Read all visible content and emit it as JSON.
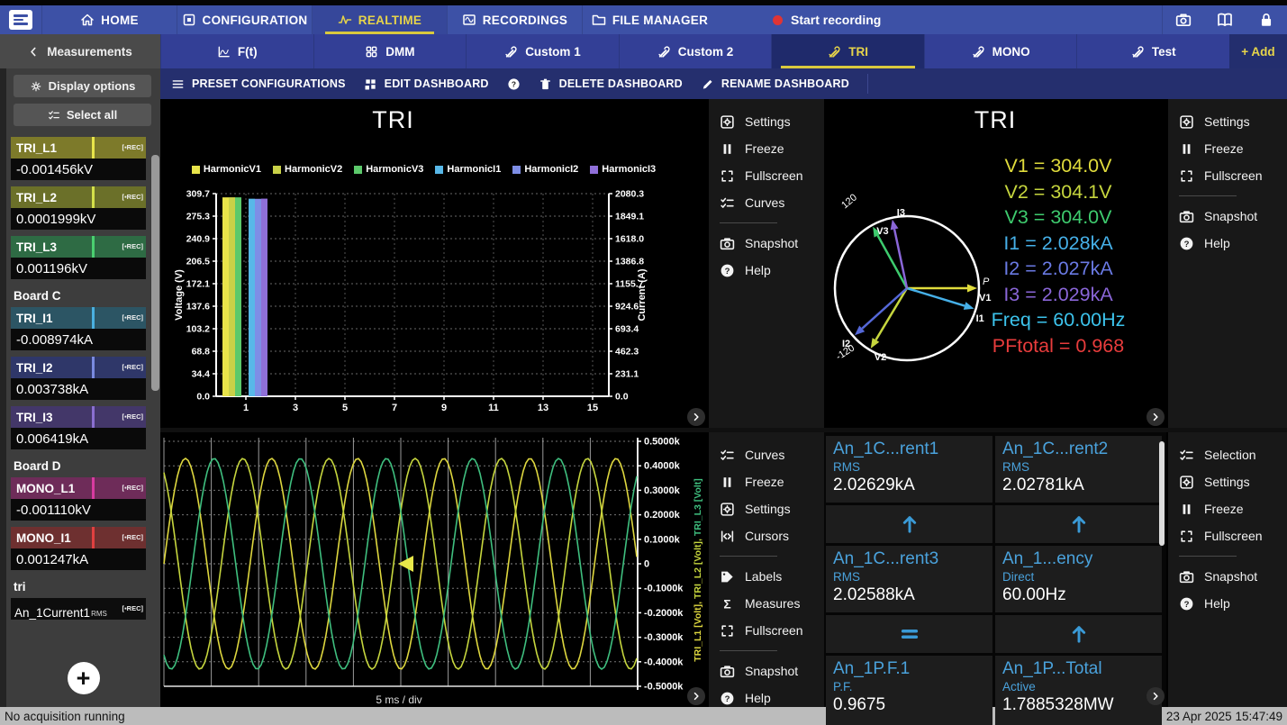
{
  "topnav": {
    "items": [
      {
        "icon": "home",
        "label": "HOME",
        "active": false
      },
      {
        "icon": "configuration",
        "label": "CONFIGURATION",
        "active": false
      },
      {
        "icon": "realtime",
        "label": "REALTIME",
        "active": true
      },
      {
        "icon": "recordings",
        "label": "RECORDINGS",
        "active": false
      },
      {
        "icon": "folder",
        "label": "FILE MANAGER",
        "active": false
      }
    ],
    "record_label": "Start recording",
    "right_icons": [
      {
        "icon": "camera",
        "name": "screenshot"
      },
      {
        "icon": "book",
        "name": "manual"
      },
      {
        "icon": "lock",
        "name": "lock"
      }
    ]
  },
  "tabs": {
    "back": "Measurements",
    "items": [
      {
        "icon": "ft",
        "label": "F(t)",
        "active": false
      },
      {
        "icon": "dmm",
        "label": "DMM",
        "active": false
      },
      {
        "icon": "tools",
        "label": "Custom 1",
        "active": false
      },
      {
        "icon": "tools",
        "label": "Custom 2",
        "active": false
      },
      {
        "icon": "tools",
        "label": "TRI",
        "active": true
      },
      {
        "icon": "tools",
        "label": "MONO",
        "active": false
      },
      {
        "icon": "tools",
        "label": "Test",
        "active": false
      }
    ],
    "add": "+ Add"
  },
  "toolbar": {
    "items": [
      {
        "icon": "hamburger",
        "label": "PRESET CONFIGURATIONS"
      },
      {
        "icon": "editgrid",
        "label": "EDIT DASHBOARD"
      },
      {
        "icon": "help",
        "label": ""
      },
      {
        "icon": "trash",
        "label": "DELETE DASHBOARD"
      },
      {
        "icon": "pencil",
        "label": "RENAME DASHBOARD"
      }
    ]
  },
  "sidebar": {
    "display_options": "Display options",
    "select_all": "Select all",
    "rec_badge": "[▪REC]",
    "entries": [
      {
        "type": "channel",
        "name": "TRI_L1",
        "value": "-0.001456kV",
        "bg": "#7d7a2a",
        "marker": "#e8e44a"
      },
      {
        "type": "channel",
        "name": "TRI_L2",
        "value": "0.0001999kV",
        "bg": "#6b7029",
        "marker": "#d4e04a"
      },
      {
        "type": "channel",
        "name": "TRI_L3",
        "value": "0.001196kV",
        "bg": "#2e6b44",
        "marker": "#4ad070"
      },
      {
        "type": "header",
        "name": "Board C"
      },
      {
        "type": "channel",
        "name": "TRI_I1",
        "value": "-0.008974kA",
        "bg": "#2c5564",
        "marker": "#4ab0e0"
      },
      {
        "type": "channel",
        "name": "TRI_I2",
        "value": "0.003738kA",
        "bg": "#2f3769",
        "marker": "#7a8ae0"
      },
      {
        "type": "channel",
        "name": "TRI_I3",
        "value": "0.006419kA",
        "bg": "#433769",
        "marker": "#8a6fd0"
      },
      {
        "type": "header",
        "name": "Board D"
      },
      {
        "type": "channel",
        "name": "MONO_L1",
        "value": "-0.001110kV",
        "bg": "#6e2c59",
        "marker": "#d83ba0"
      },
      {
        "type": "channel",
        "name": "MONO_I1",
        "value": "0.001247kA",
        "bg": "#6e3030",
        "marker": "#e04040"
      },
      {
        "type": "header",
        "name": "tri"
      },
      {
        "type": "channel_dark",
        "name": "An_1Current1",
        "sub": "RMS"
      }
    ]
  },
  "panels": {
    "harmonic": {
      "title": "TRI",
      "legend": [
        {
          "label": "HarmonicV1",
          "color": "#e8e44a"
        },
        {
          "label": "HarmonicV2",
          "color": "#c9d148",
          "note": ""
        },
        {
          "label": "HarmonicV3",
          "color": "#5cc96b"
        },
        {
          "label": "HarmonicI1",
          "color": "#58b8e8"
        },
        {
          "label": "HarmonicI2",
          "color": "#7e8ee6"
        },
        {
          "label": "HarmonicI3",
          "color": "#8f6fd8"
        }
      ],
      "menu": [
        {
          "icon": "settings",
          "label": "Settings"
        },
        {
          "icon": "freeze",
          "label": "Freeze"
        },
        {
          "icon": "fullscreen",
          "label": "Fullscreen"
        },
        {
          "icon": "curves",
          "label": "Curves"
        },
        {
          "divider": true
        },
        {
          "icon": "snapshot",
          "label": "Snapshot"
        },
        {
          "icon": "help",
          "label": "Help"
        }
      ]
    },
    "phasor": {
      "title": "TRI",
      "readouts": [
        {
          "label": "V1",
          "value": "304.0V",
          "color": "#e0dc3c"
        },
        {
          "label": "V2",
          "value": "304.1V",
          "color": "#c6d63e"
        },
        {
          "label": "V3",
          "value": "304.0V",
          "color": "#3ecb6e"
        },
        {
          "label": "I1",
          "value": "2.028kA",
          "color": "#46b0e8"
        },
        {
          "label": "I2",
          "value": "2.027kA",
          "color": "#6a7ae4"
        },
        {
          "label": "I3",
          "value": "2.029kA",
          "color": "#8a66d8"
        },
        {
          "label": "Freq",
          "value": "60.00Hz",
          "color": "#3cc3ec"
        },
        {
          "label": "PFtotal",
          "value": "0.968",
          "color": "#e83c3c"
        }
      ],
      "menu": [
        {
          "icon": "settings",
          "label": "Settings"
        },
        {
          "icon": "freeze",
          "label": "Freeze"
        },
        {
          "icon": "fullscreen",
          "label": "Fullscreen"
        },
        {
          "divider": true
        },
        {
          "icon": "snapshot",
          "label": "Snapshot"
        },
        {
          "icon": "help",
          "label": "Help"
        }
      ]
    },
    "waveform": {
      "xlabel": "5 ms / div",
      "ylabel_parts": [
        {
          "text": "TRI_L1 [Volt]",
          "color": "#ded73f"
        },
        {
          "text": "TRI_L2 [Volt]",
          "color": "#c6d63e"
        },
        {
          "text": "TRI_L3 [Volt]",
          "color": "#3fbf7f"
        }
      ],
      "menu": [
        {
          "icon": "curves",
          "label": "Curves"
        },
        {
          "icon": "freeze",
          "label": "Freeze"
        },
        {
          "icon": "settings",
          "label": "Settings"
        },
        {
          "icon": "cursors",
          "label": "Cursors"
        },
        {
          "divider": true
        },
        {
          "icon": "tag",
          "label": "Labels"
        },
        {
          "icon": "sigma",
          "label": "Measures"
        },
        {
          "icon": "fullscreen",
          "label": "Fullscreen"
        },
        {
          "divider": true
        },
        {
          "icon": "snapshot",
          "label": "Snapshot"
        },
        {
          "icon": "help",
          "label": "Help"
        }
      ]
    },
    "tiles": {
      "items": [
        {
          "name": "An_1C...rent1",
          "sub": "RMS",
          "value": "2.02629kA"
        },
        {
          "name": "An_1C...rent2",
          "sub": "RMS",
          "value": "2.02781kA"
        },
        {
          "name": "An_1C...rent3",
          "sub": "RMS",
          "value": "2.02588kA"
        },
        {
          "name": "An_1...ency",
          "sub": "Direct",
          "value": "60.00Hz"
        },
        {
          "name": "An_1P.F.1",
          "sub": "P.F.",
          "value": "0.9675"
        },
        {
          "name": "An_1P...Total",
          "sub": "Active",
          "value": "1.7885328MW"
        }
      ],
      "trends": [
        [
          "up",
          "up"
        ],
        [
          "equal",
          "up"
        ]
      ],
      "trend_color": "#3a9ad6",
      "menu": [
        {
          "icon": "selection",
          "label": "Selection"
        },
        {
          "icon": "settings",
          "label": "Settings"
        },
        {
          "icon": "freeze",
          "label": "Freeze"
        },
        {
          "icon": "fullscreen",
          "label": "Fullscreen"
        },
        {
          "divider": true
        },
        {
          "icon": "snapshot",
          "label": "Snapshot"
        },
        {
          "icon": "help",
          "label": "Help"
        }
      ]
    }
  },
  "statusbar": {
    "left": "No acquisition running",
    "right": "23 Apr 2025 15:47:49"
  },
  "chart_data": [
    {
      "id": "harmonics",
      "type": "bar",
      "title": "TRI",
      "x_ticks": [
        1,
        3,
        5,
        7,
        9,
        11,
        13,
        15
      ],
      "x_range": [
        0,
        16
      ],
      "left_axis": {
        "label": "Voltage (V)",
        "max": 309.7,
        "ticks": [
          "309.7",
          "275.3",
          "240.9",
          "206.5",
          "172.1",
          "137.6",
          "103.2",
          "68.8",
          "34.4",
          "0.0"
        ]
      },
      "right_axis": {
        "label": "Current (A)",
        "max": 2080.3,
        "ticks": [
          "2080.3",
          "1849.1",
          "1618.0",
          "1386.8",
          "1155.7",
          "924.6",
          "693.4",
          "462.3",
          "231.1",
          "0.0"
        ]
      },
      "series": [
        {
          "name": "HarmonicV1",
          "color": "#e8e44a",
          "axis": "left",
          "x": 1,
          "value": 304.0
        },
        {
          "name": "HarmonicV2",
          "color": "#c9d148",
          "axis": "left",
          "x": 1,
          "value": 304.1
        },
        {
          "name": "HarmonicV3",
          "color": "#5cc96b",
          "axis": "left",
          "x": 1,
          "value": 304.0
        },
        {
          "name": "HarmonicI1",
          "color": "#58b8e8",
          "axis": "right",
          "x": 1,
          "value": 2028.0
        },
        {
          "name": "HarmonicI2",
          "color": "#7e8ee6",
          "axis": "right",
          "x": 1,
          "value": 2027.0
        },
        {
          "name": "HarmonicI3",
          "color": "#8f6fd8",
          "axis": "right",
          "x": 1,
          "value": 2029.0
        }
      ]
    },
    {
      "id": "waveform",
      "type": "line",
      "x_axis_label": "5 ms / div",
      "divisions": 10,
      "cycles_visible": 5.5,
      "y_range_k": [
        -0.5,
        0.5
      ],
      "y_ticks": [
        "0.5000k",
        "0.4000k",
        "0.3000k",
        "0.2000k",
        "0.1000k",
        "0",
        "-0.1000k",
        "-0.2000k",
        "-0.3000k",
        "-0.4000k",
        "-0.5000k"
      ],
      "series": [
        {
          "name": "TRI_L1 [Volt]",
          "color": "#ded73f",
          "amplitude_k": 0.43,
          "phase_deg": 0
        },
        {
          "name": "TRI_L2 [Volt]",
          "color": "#c6d63e",
          "amplitude_k": 0.43,
          "phase_deg": 120
        },
        {
          "name": "TRI_L3 [Volt]",
          "color": "#3fbf7f",
          "amplitude_k": 0.43,
          "phase_deg": -120
        }
      ]
    },
    {
      "id": "phasor",
      "type": "phasor",
      "title": "TRI",
      "p_label": "P",
      "vectors": [
        {
          "name": "V1",
          "angle_deg": 0,
          "color": "#e0dc3c",
          "label_offset": [
            2,
            14
          ]
        },
        {
          "name": "I1",
          "angle_deg": -17,
          "color": "#46b0e8",
          "label_offset": [
            2,
            14
          ]
        },
        {
          "name": "V2",
          "angle_deg": -121,
          "color": "#c6d63e",
          "label_offset": [
            4,
            13
          ]
        },
        {
          "name": "I2",
          "angle_deg": -138,
          "color": "#5568d8",
          "label_offset": [
            -14,
            13
          ]
        },
        {
          "name": "V3",
          "angle_deg": 119,
          "color": "#3ecb6e",
          "label_offset": [
            4,
            8
          ]
        },
        {
          "name": "I3",
          "angle_deg": 102,
          "color": "#8a66d8",
          "label_offset": [
            5,
            -4
          ]
        }
      ],
      "angle_labels": [
        {
          "text": "120",
          "x": 23,
          "y": 122,
          "rotate": -40
        },
        {
          "text": "-120",
          "x": 16,
          "y": 290,
          "rotate": -33
        }
      ],
      "freq_hz": 60.0,
      "pf_total": 0.968
    }
  ]
}
